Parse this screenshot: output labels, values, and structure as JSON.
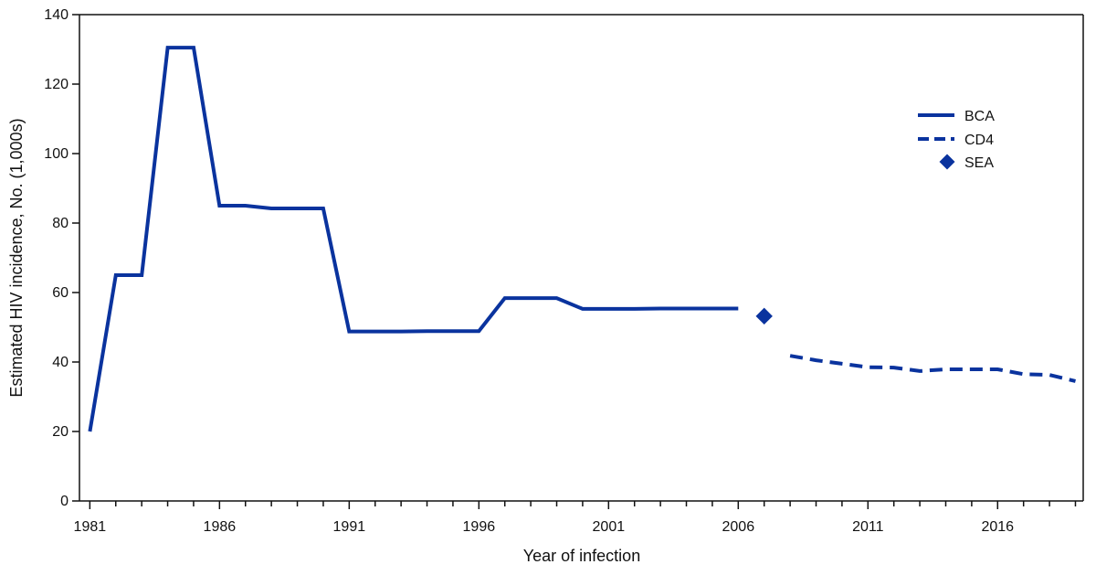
{
  "chart_data": {
    "type": "line",
    "xlabel": "Year of infection",
    "ylabel": "Estimated HIV incidence, No. (1,000s)",
    "xlim": [
      1981,
      2019
    ],
    "ylim": [
      0,
      140
    ],
    "x_ticks": [
      1981,
      1986,
      1991,
      1996,
      2001,
      2006,
      2011,
      2016
    ],
    "y_ticks": [
      0,
      20,
      40,
      60,
      80,
      100,
      120,
      140
    ],
    "grid": false,
    "legend_position": "right",
    "colors": {
      "series": "#0a339e",
      "axis": "#111111"
    },
    "series": [
      {
        "name": "BCA",
        "style": "solid",
        "x": [
          1981,
          1982,
          1983,
          1984,
          1985,
          1986,
          1987,
          1988,
          1989,
          1990,
          1991,
          1992,
          1993,
          1994,
          1995,
          1996,
          1997,
          1998,
          1999,
          2000,
          2001,
          2002,
          2003,
          2004,
          2005,
          2006
        ],
        "values": [
          20,
          65,
          65,
          130.5,
          130.5,
          85,
          85,
          84.2,
          84.2,
          84.2,
          48.8,
          48.8,
          48.8,
          48.9,
          48.9,
          48.9,
          58.4,
          58.4,
          58.4,
          55.3,
          55.3,
          55.3,
          55.4,
          55.4,
          55.4,
          55.4
        ]
      },
      {
        "name": "CD4",
        "style": "dashed",
        "x": [
          2008,
          2009,
          2010,
          2011,
          2012,
          2013,
          2014,
          2015,
          2016,
          2017,
          2018,
          2019
        ],
        "values": [
          41.8,
          40.5,
          39.5,
          38.5,
          38.4,
          37.4,
          37.9,
          37.9,
          37.9,
          36.5,
          36.3,
          34.5
        ]
      },
      {
        "name": "SEA",
        "style": "marker",
        "x": [
          2007
        ],
        "values": [
          53.2
        ]
      }
    ]
  }
}
